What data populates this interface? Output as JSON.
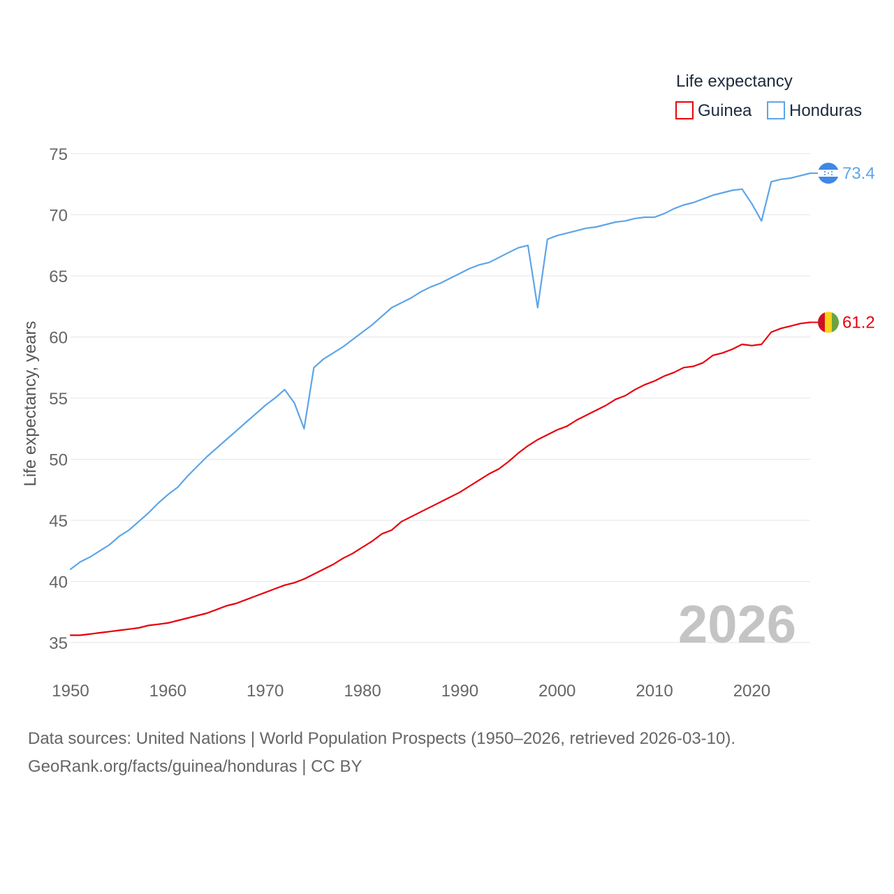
{
  "chart_data": {
    "type": "line",
    "title": "Life expectancy",
    "xlabel": "",
    "ylabel": "Life expectancy, years",
    "xlim": [
      1950,
      2026
    ],
    "ylim": [
      35,
      75
    ],
    "x_ticks": [
      "1950",
      "1960",
      "1970",
      "1980",
      "1990",
      "2000",
      "2010",
      "2020"
    ],
    "y_ticks": [
      "35",
      "40",
      "45",
      "50",
      "55",
      "60",
      "65",
      "70",
      "75"
    ],
    "grid": true,
    "legend_position": "top-right",
    "current_year": "2026",
    "series": [
      {
        "name": "Guinea",
        "color": "#e8000b",
        "end_label": "61.2",
        "flag": "guinea-flag",
        "x": [
          1950,
          1951,
          1952,
          1953,
          1954,
          1955,
          1956,
          1957,
          1958,
          1959,
          1960,
          1961,
          1962,
          1963,
          1964,
          1965,
          1966,
          1967,
          1968,
          1969,
          1970,
          1971,
          1972,
          1973,
          1974,
          1975,
          1976,
          1977,
          1978,
          1979,
          1980,
          1981,
          1982,
          1983,
          1984,
          1985,
          1986,
          1987,
          1988,
          1989,
          1990,
          1991,
          1992,
          1993,
          1994,
          1995,
          1996,
          1997,
          1998,
          1999,
          2000,
          2001,
          2002,
          2003,
          2004,
          2005,
          2006,
          2007,
          2008,
          2009,
          2010,
          2011,
          2012,
          2013,
          2014,
          2015,
          2016,
          2017,
          2018,
          2019,
          2020,
          2021,
          2022,
          2023,
          2024,
          2025,
          2026
        ],
        "values": [
          35.6,
          35.6,
          35.7,
          35.8,
          35.9,
          36.0,
          36.1,
          36.2,
          36.4,
          36.5,
          36.6,
          36.8,
          37.0,
          37.2,
          37.4,
          37.7,
          38.0,
          38.2,
          38.5,
          38.8,
          39.1,
          39.4,
          39.7,
          39.9,
          40.2,
          40.6,
          41.0,
          41.4,
          41.9,
          42.3,
          42.8,
          43.3,
          43.9,
          44.2,
          44.9,
          45.3,
          45.7,
          46.1,
          46.5,
          46.9,
          47.3,
          47.8,
          48.3,
          48.8,
          49.2,
          49.8,
          50.5,
          51.1,
          51.6,
          52.0,
          52.4,
          52.7,
          53.2,
          53.6,
          54.0,
          54.4,
          54.9,
          55.2,
          55.7,
          56.1,
          56.4,
          56.8,
          57.1,
          57.5,
          57.6,
          57.9,
          58.5,
          58.7,
          59.0,
          59.4,
          59.3,
          59.4,
          60.4,
          60.7,
          60.9,
          61.1,
          61.2
        ]
      },
      {
        "name": "Honduras",
        "color": "#5da5e8",
        "end_label": "73.4",
        "flag": "honduras-flag",
        "x": [
          1950,
          1951,
          1952,
          1953,
          1954,
          1955,
          1956,
          1957,
          1958,
          1959,
          1960,
          1961,
          1962,
          1963,
          1964,
          1965,
          1966,
          1967,
          1968,
          1969,
          1970,
          1971,
          1972,
          1973,
          1974,
          1975,
          1976,
          1977,
          1978,
          1979,
          1980,
          1981,
          1982,
          1983,
          1984,
          1985,
          1986,
          1987,
          1988,
          1989,
          1990,
          1991,
          1992,
          1993,
          1994,
          1995,
          1996,
          1997,
          1998,
          1999,
          2000,
          2001,
          2002,
          2003,
          2004,
          2005,
          2006,
          2007,
          2008,
          2009,
          2010,
          2011,
          2012,
          2013,
          2014,
          2015,
          2016,
          2017,
          2018,
          2019,
          2020,
          2021,
          2022,
          2023,
          2024,
          2025,
          2026
        ],
        "values": [
          41.0,
          41.6,
          42.0,
          42.5,
          43.0,
          43.7,
          44.2,
          44.9,
          45.6,
          46.4,
          47.1,
          47.7,
          48.6,
          49.4,
          50.2,
          50.9,
          51.6,
          52.3,
          53.0,
          53.7,
          54.4,
          55.0,
          55.7,
          54.6,
          52.5,
          57.5,
          58.2,
          58.7,
          59.2,
          59.8,
          60.4,
          61.0,
          61.7,
          62.4,
          62.8,
          63.2,
          63.7,
          64.1,
          64.4,
          64.8,
          65.2,
          65.6,
          65.9,
          66.1,
          66.5,
          66.9,
          67.3,
          67.5,
          62.4,
          68.0,
          68.3,
          68.5,
          68.7,
          68.9,
          69.0,
          69.2,
          69.4,
          69.5,
          69.7,
          69.8,
          69.8,
          70.1,
          70.5,
          70.8,
          71.0,
          71.3,
          71.6,
          71.8,
          72.0,
          72.1,
          70.9,
          69.5,
          72.7,
          72.9,
          73.0,
          73.2,
          73.4
        ]
      }
    ]
  },
  "footer": {
    "line1": "Data sources: United Nations | World Population Prospects (1950–2026, retrieved 2026-03-10).",
    "line2": "GeoRank.org/facts/guinea/honduras | CC BY"
  }
}
